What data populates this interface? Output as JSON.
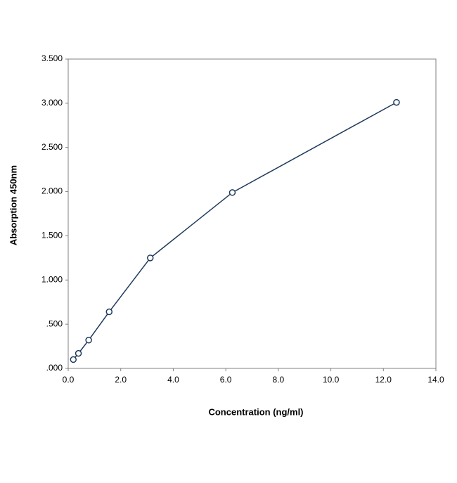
{
  "chart_data": {
    "type": "line",
    "x_label": "Concentration (ng/ml)",
    "y_label": "Absorption 450nm",
    "x": [
      0.195,
      0.39,
      0.78,
      1.56,
      3.125,
      6.25,
      12.5
    ],
    "series": [
      {
        "color": "#1f3b5c",
        "values": [
          0.1,
          0.17,
          0.32,
          0.64,
          1.25,
          1.99,
          3.01
        ]
      }
    ],
    "xlim": [
      0,
      14
    ],
    "xticks": [
      {
        "value": 0,
        "label": "0.0"
      },
      {
        "value": 2,
        "label": "2.0"
      },
      {
        "value": 4,
        "label": "4.0"
      },
      {
        "value": 6,
        "label": "6.0"
      },
      {
        "value": 8,
        "label": "8.0"
      },
      {
        "value": 10,
        "label": "10.0"
      },
      {
        "value": 12,
        "label": "12.0"
      },
      {
        "value": 14,
        "label": "14.0"
      }
    ],
    "ylim": [
      0,
      3.5
    ],
    "yticks": [
      {
        "value": 0,
        "label": ".000"
      },
      {
        "value": 0.5,
        "label": ".500"
      },
      {
        "value": 1,
        "label": "1.000"
      },
      {
        "value": 1.5,
        "label": "1.500"
      },
      {
        "value": 2,
        "label": "2.000"
      },
      {
        "value": 2.5,
        "label": "2.500"
      },
      {
        "value": 3,
        "label": "3.000"
      },
      {
        "value": 3.5,
        "label": "3.500"
      }
    ],
    "grid": false
  }
}
